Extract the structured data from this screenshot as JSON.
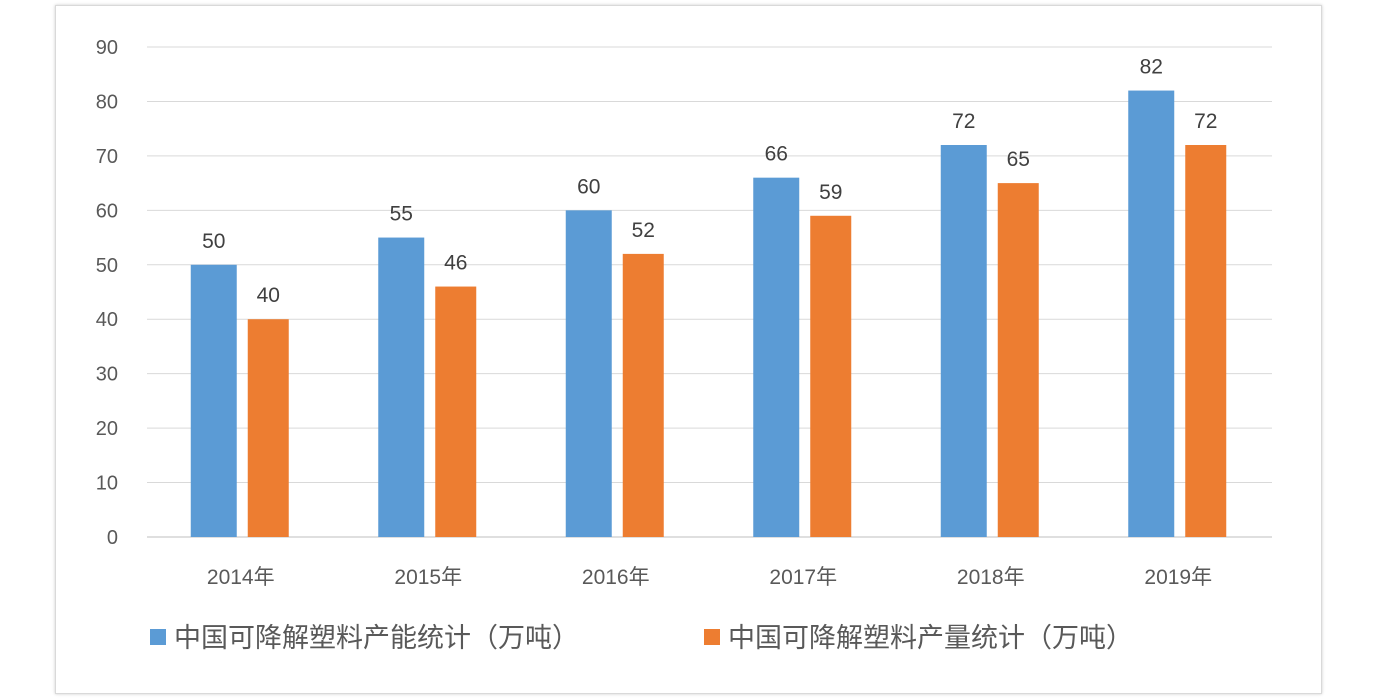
{
  "chart_data": {
    "type": "bar",
    "title": "",
    "xlabel": "",
    "ylabel": "",
    "categories": [
      "2014年",
      "2015年",
      "2016年",
      "2017年",
      "2018年",
      "2019年"
    ],
    "series": [
      {
        "name": "中国可降解塑料产能统计（万吨）",
        "color": "#5b9bd5",
        "values": [
          50,
          55,
          60,
          66,
          72,
          82
        ]
      },
      {
        "name": "中国可降解塑料产量统计（万吨）",
        "color": "#ed7d31",
        "values": [
          40,
          46,
          52,
          59,
          65,
          72
        ]
      }
    ],
    "ylim": [
      0,
      90
    ],
    "yticks": [
      0,
      10,
      20,
      30,
      40,
      50,
      60,
      70,
      80,
      90
    ],
    "grid": true,
    "data_labels": true,
    "legend": "bottom"
  }
}
